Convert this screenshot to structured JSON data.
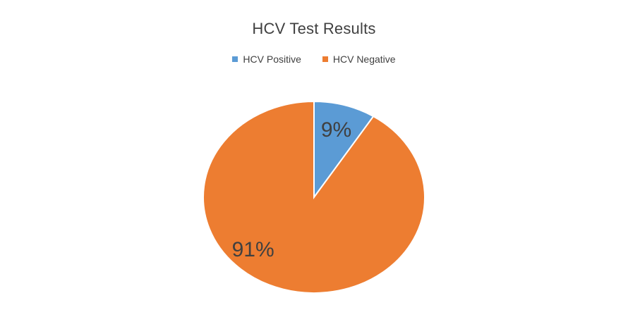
{
  "chart_data": {
    "type": "pie",
    "title": "HCV Test Results",
    "categories": [
      "HCV Positive",
      "HCV Negative"
    ],
    "values": [
      9,
      91
    ],
    "data_labels": [
      "9%",
      "91%"
    ],
    "colors": [
      "#5B9BD5",
      "#ED7D31"
    ],
    "legend_position": "top"
  }
}
